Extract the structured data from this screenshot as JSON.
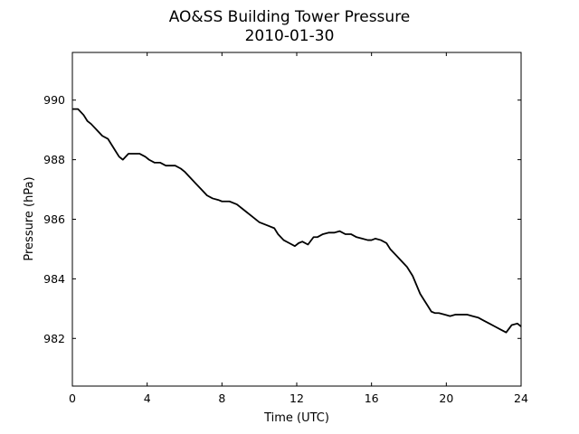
{
  "chart_data": {
    "type": "line",
    "title": "AO&SS Building Tower Pressure",
    "subtitle": "2010-01-30",
    "xlabel": "Time (UTC)",
    "ylabel": "Pressure (hPa)",
    "xlim": [
      0,
      24
    ],
    "ylim": [
      980.4,
      991.6
    ],
    "xticks": [
      0,
      4,
      8,
      12,
      16,
      20,
      24
    ],
    "yticks": [
      982,
      984,
      986,
      988,
      990
    ],
    "grid": false,
    "line_color": "#000000",
    "series": [
      {
        "x": [
          0,
          0.3,
          0.6,
          0.8,
          1.0,
          1.3,
          1.6,
          1.9,
          2.1,
          2.3,
          2.5,
          2.7,
          3.0,
          3.3,
          3.6,
          3.9,
          4.1,
          4.4,
          4.7,
          5.0,
          5.2,
          5.5,
          5.8,
          6.0,
          6.3,
          6.6,
          6.9,
          7.2,
          7.5,
          7.8,
          8.0,
          8.4,
          8.8,
          9.2,
          9.6,
          10.0,
          10.4,
          10.8,
          11.0,
          11.3,
          11.6,
          11.9,
          12.1,
          12.3,
          12.6,
          12.9,
          13.1,
          13.4,
          13.7,
          14.0,
          14.3,
          14.6,
          14.9,
          15.2,
          15.5,
          15.8,
          16.0,
          16.2,
          16.5,
          16.8,
          17.0,
          17.3,
          17.6,
          17.9,
          18.2,
          18.4,
          18.6,
          18.8,
          19.0,
          19.2,
          19.4,
          19.6,
          19.9,
          20.2,
          20.5,
          20.8,
          21.1,
          21.4,
          21.7,
          22.0,
          22.3,
          22.6,
          22.9,
          23.2,
          23.5,
          23.8,
          24.0
        ],
        "y": [
          989.7,
          989.7,
          989.5,
          989.3,
          989.2,
          989.0,
          988.8,
          988.7,
          988.5,
          988.3,
          988.1,
          988.0,
          988.2,
          988.2,
          988.2,
          988.1,
          988.0,
          987.9,
          987.9,
          987.8,
          987.8,
          987.8,
          987.7,
          987.6,
          987.4,
          987.2,
          987.0,
          986.8,
          986.7,
          986.65,
          986.6,
          986.6,
          986.5,
          986.3,
          986.1,
          985.9,
          985.8,
          985.7,
          985.5,
          985.3,
          985.2,
          985.1,
          985.2,
          985.25,
          985.15,
          985.4,
          985.4,
          985.5,
          985.55,
          985.55,
          985.6,
          985.5,
          985.5,
          985.4,
          985.35,
          985.3,
          985.3,
          985.35,
          985.3,
          985.2,
          985.0,
          984.8,
          984.6,
          984.4,
          984.1,
          983.8,
          983.5,
          983.3,
          983.1,
          982.9,
          982.85,
          982.85,
          982.8,
          982.75,
          982.8,
          982.8,
          982.8,
          982.75,
          982.7,
          982.6,
          982.5,
          982.4,
          982.3,
          982.2,
          982.45,
          982.5,
          982.4
        ]
      }
    ]
  }
}
